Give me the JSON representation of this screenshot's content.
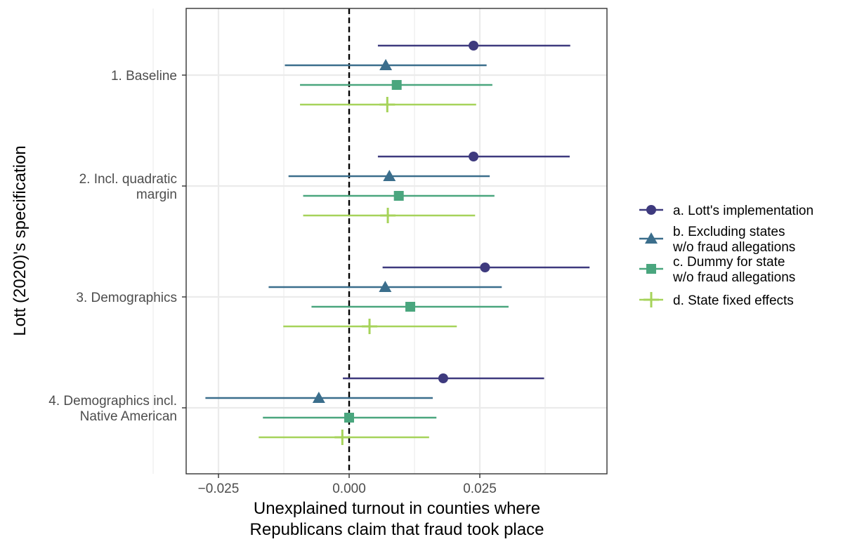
{
  "chart_data": {
    "type": "scatter",
    "subtype": "coefficient-plot-with-confidence-intervals",
    "xlabel": [
      "Unexplained turnout in counties where",
      "Republicans claim that fraud took place"
    ],
    "ylabel": "Lott (2020)'s specification",
    "xlim": [
      -0.0315,
      0.0395
    ],
    "x_ticks": [
      {
        "value": -0.025,
        "label": "−0.025"
      },
      {
        "value": 0.0,
        "label": "0.000"
      },
      {
        "value": 0.025,
        "label": "0.025"
      }
    ],
    "x_minor_gridlines": [
      -0.0375,
      -0.0125,
      0.0125,
      0.0375
    ],
    "reference_line": {
      "x": 0,
      "style": "dashed",
      "color": "#000000"
    },
    "grid": true,
    "legend_position": "right",
    "categories": [
      {
        "lines": [
          "1. Baseline"
        ]
      },
      {
        "lines": [
          "2. Incl. quadratic",
          "margin"
        ]
      },
      {
        "lines": [
          "3. Demographics"
        ]
      },
      {
        "lines": [
          "4. Demographics incl.",
          "Native American"
        ]
      }
    ],
    "series": [
      {
        "key": "a",
        "name": [
          "a. Lott's implementation"
        ],
        "color": "#3e3a7e",
        "marker": "circle",
        "estimates": [
          0.0238,
          0.0238,
          0.026,
          0.018
        ],
        "ci_low": [
          0.0055,
          0.0055,
          0.0064,
          -0.0012
        ],
        "ci_high": [
          0.0423,
          0.0422,
          0.046,
          0.0373
        ]
      },
      {
        "key": "b",
        "name": [
          "b. Excluding states",
          "w/o fraud allegations"
        ],
        "color": "#3b6e8c",
        "marker": "triangle",
        "estimates": [
          0.007,
          0.0077,
          0.0069,
          -0.0058
        ],
        "ci_low": [
          -0.0123,
          -0.0116,
          -0.0154,
          -0.0275
        ],
        "ci_high": [
          0.0263,
          0.0269,
          0.0292,
          0.016
        ]
      },
      {
        "key": "c",
        "name": [
          "c. Dummy for state",
          "w/o fraud allegations"
        ],
        "color": "#4aa67e",
        "marker": "square",
        "estimates": [
          0.0091,
          0.0095,
          0.0117,
          0.0
        ],
        "ci_low": [
          -0.0094,
          -0.0088,
          -0.0072,
          -0.0165
        ],
        "ci_high": [
          0.0274,
          0.0278,
          0.0305,
          0.0167
        ]
      },
      {
        "key": "d",
        "name": [
          "d. State fixed effects"
        ],
        "color": "#a6d35a",
        "marker": "cross",
        "estimates": [
          0.0073,
          0.0074,
          0.0039,
          -0.0013
        ],
        "ci_low": [
          -0.0094,
          -0.0088,
          -0.0126,
          -0.0173
        ],
        "ci_high": [
          0.0243,
          0.0241,
          0.0206,
          0.0153
        ]
      }
    ]
  }
}
